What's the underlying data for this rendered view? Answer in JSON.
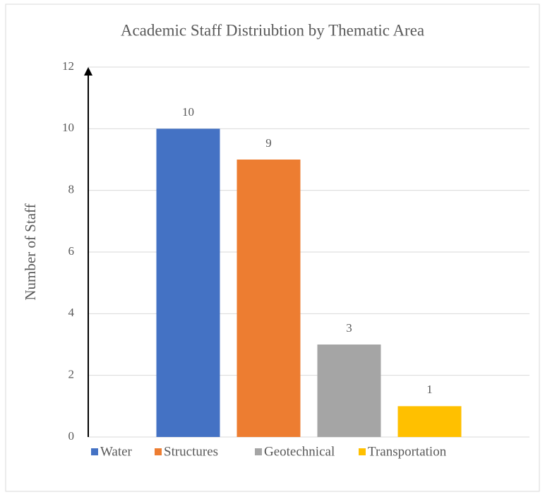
{
  "chart_data": {
    "type": "bar",
    "title": "Academic Staff Distriubtion by Thematic Area",
    "y_label": "Number of Staff",
    "categories": [
      null
    ],
    "series": [
      {
        "name": "Water",
        "color": "#4472c4",
        "values": [
          10
        ]
      },
      {
        "name": "Structures",
        "color": "#ed7d31",
        "values": [
          9
        ]
      },
      {
        "name": "Geotechnical",
        "color": "#a5a5a5",
        "values": [
          3
        ]
      },
      {
        "name": "Transportation",
        "color": "#ffc000",
        "values": [
          1
        ]
      }
    ],
    "ylim": [
      0,
      12
    ],
    "yticks": [
      0,
      2,
      4,
      6,
      8,
      10,
      12
    ],
    "grid": true,
    "legend": "bottom"
  }
}
